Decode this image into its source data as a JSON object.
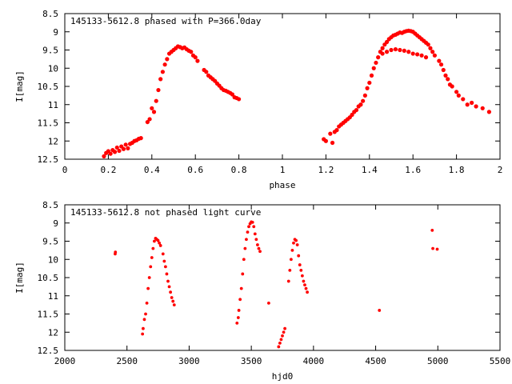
{
  "chart_data": [
    {
      "type": "scatter",
      "title": "145133-5612.8 phased with P=366.0day",
      "xlabel": "phase",
      "ylabel": "I[mag]",
      "xlim": [
        0,
        2
      ],
      "ylim": [
        12.5,
        8.5
      ],
      "y_inverted": true,
      "xticks": [
        "0",
        "0.2",
        "0.4",
        "0.6",
        "0.8",
        "1",
        "1.2",
        "1.4",
        "1.6",
        "1.8",
        "2"
      ],
      "yticks": [
        "8.5",
        "9",
        "9.5",
        "10",
        "10.5",
        "11",
        "11.5",
        "12",
        "12.5"
      ],
      "grid": false,
      "marker_color": "#ff0000",
      "series": [
        {
          "points": [
            [
              0.18,
              12.42
            ],
            [
              0.19,
              12.33
            ],
            [
              0.2,
              12.28
            ],
            [
              0.21,
              12.35
            ],
            [
              0.22,
              12.25
            ],
            [
              0.23,
              12.3
            ],
            [
              0.24,
              12.18
            ],
            [
              0.25,
              12.27
            ],
            [
              0.26,
              12.15
            ],
            [
              0.27,
              12.22
            ],
            [
              0.28,
              12.1
            ],
            [
              0.29,
              12.2
            ],
            [
              0.3,
              12.08
            ],
            [
              0.31,
              12.05
            ],
            [
              0.32,
              12.0
            ],
            [
              0.33,
              11.98
            ],
            [
              0.34,
              11.94
            ],
            [
              0.35,
              11.92
            ],
            [
              0.38,
              11.48
            ],
            [
              0.39,
              11.4
            ],
            [
              0.4,
              11.1
            ],
            [
              0.41,
              11.2
            ],
            [
              0.42,
              10.9
            ],
            [
              0.43,
              10.6
            ],
            [
              0.44,
              10.3
            ],
            [
              0.45,
              10.1
            ],
            [
              0.46,
              9.9
            ],
            [
              0.47,
              9.75
            ],
            [
              0.48,
              9.6
            ],
            [
              0.49,
              9.55
            ],
            [
              0.5,
              9.5
            ],
            [
              0.51,
              9.45
            ],
            [
              0.52,
              9.4
            ],
            [
              0.53,
              9.42
            ],
            [
              0.54,
              9.45
            ],
            [
              0.55,
              9.43
            ],
            [
              0.56,
              9.48
            ],
            [
              0.57,
              9.52
            ],
            [
              0.58,
              9.55
            ],
            [
              0.59,
              9.65
            ],
            [
              0.6,
              9.7
            ],
            [
              0.61,
              9.8
            ],
            [
              0.64,
              10.05
            ],
            [
              0.65,
              10.1
            ],
            [
              0.66,
              10.2
            ],
            [
              0.67,
              10.25
            ],
            [
              0.68,
              10.3
            ],
            [
              0.69,
              10.35
            ],
            [
              0.7,
              10.42
            ],
            [
              0.71,
              10.48
            ],
            [
              0.72,
              10.55
            ],
            [
              0.73,
              10.6
            ],
            [
              0.74,
              10.62
            ],
            [
              0.75,
              10.65
            ],
            [
              0.76,
              10.68
            ],
            [
              0.77,
              10.72
            ],
            [
              0.78,
              10.8
            ],
            [
              0.79,
              10.82
            ],
            [
              0.8,
              10.85
            ],
            [
              1.19,
              11.95
            ],
            [
              1.2,
              12.0
            ],
            [
              1.22,
              11.8
            ],
            [
              1.23,
              12.05
            ],
            [
              1.24,
              11.75
            ],
            [
              1.25,
              11.7
            ],
            [
              1.26,
              11.6
            ],
            [
              1.27,
              11.55
            ],
            [
              1.28,
              11.5
            ],
            [
              1.29,
              11.45
            ],
            [
              1.3,
              11.4
            ],
            [
              1.31,
              11.35
            ],
            [
              1.32,
              11.28
            ],
            [
              1.33,
              11.2
            ],
            [
              1.34,
              11.15
            ],
            [
              1.35,
              11.05
            ],
            [
              1.36,
              11.0
            ],
            [
              1.37,
              10.9
            ],
            [
              1.38,
              10.75
            ],
            [
              1.39,
              10.55
            ],
            [
              1.4,
              10.4
            ],
            [
              1.41,
              10.2
            ],
            [
              1.42,
              10.0
            ],
            [
              1.43,
              9.85
            ],
            [
              1.44,
              9.7
            ],
            [
              1.45,
              9.55
            ],
            [
              1.46,
              9.45
            ],
            [
              1.47,
              9.35
            ],
            [
              1.48,
              9.28
            ],
            [
              1.49,
              9.2
            ],
            [
              1.5,
              9.15
            ],
            [
              1.51,
              9.1
            ],
            [
              1.52,
              9.08
            ],
            [
              1.53,
              9.05
            ],
            [
              1.54,
              9.02
            ],
            [
              1.55,
              9.03
            ],
            [
              1.56,
              9.0
            ],
            [
              1.57,
              8.98
            ],
            [
              1.58,
              8.97
            ],
            [
              1.59,
              8.98
            ],
            [
              1.6,
              9.0
            ],
            [
              1.61,
              9.05
            ],
            [
              1.62,
              9.1
            ],
            [
              1.63,
              9.15
            ],
            [
              1.64,
              9.2
            ],
            [
              1.65,
              9.25
            ],
            [
              1.66,
              9.3
            ],
            [
              1.67,
              9.35
            ],
            [
              1.68,
              9.45
            ],
            [
              1.69,
              9.55
            ],
            [
              1.7,
              9.65
            ],
            [
              1.72,
              9.8
            ],
            [
              1.73,
              9.9
            ],
            [
              1.74,
              10.05
            ],
            [
              1.75,
              10.2
            ],
            [
              1.76,
              10.3
            ],
            [
              1.77,
              10.45
            ],
            [
              1.78,
              10.5
            ],
            [
              1.8,
              10.65
            ],
            [
              1.81,
              10.75
            ],
            [
              1.83,
              10.85
            ],
            [
              1.85,
              11.0
            ],
            [
              1.87,
              10.95
            ],
            [
              1.89,
              11.05
            ],
            [
              1.92,
              11.1
            ],
            [
              1.95,
              11.2
            ],
            [
              1.46,
              9.6
            ],
            [
              1.48,
              9.55
            ],
            [
              1.5,
              9.5
            ],
            [
              1.52,
              9.48
            ],
            [
              1.54,
              9.5
            ],
            [
              1.56,
              9.52
            ],
            [
              1.58,
              9.55
            ],
            [
              1.6,
              9.6
            ],
            [
              1.62,
              9.62
            ],
            [
              1.64,
              9.65
            ],
            [
              1.66,
              9.7
            ]
          ]
        }
      ]
    },
    {
      "type": "scatter",
      "title": "145133-5612.8 not phased light curve",
      "xlabel": "hjd0",
      "ylabel": "I[mag]",
      "xlim": [
        2000,
        5500
      ],
      "ylim": [
        12.5,
        8.5
      ],
      "y_inverted": true,
      "xticks": [
        "2000",
        "2500",
        "3000",
        "3500",
        "4000",
        "4500",
        "5000",
        "5500"
      ],
      "yticks": [
        "8.5",
        "9",
        "9.5",
        "10",
        "10.5",
        "11",
        "11.5",
        "12",
        "12.5"
      ],
      "grid": false,
      "marker_color": "#ff0000",
      "series": [
        {
          "points": [
            [
              2405,
              9.85
            ],
            [
              2407,
              9.8
            ],
            [
              2625,
              12.05
            ],
            [
              2630,
              11.9
            ],
            [
              2640,
              11.65
            ],
            [
              2650,
              11.5
            ],
            [
              2660,
              11.2
            ],
            [
              2670,
              10.8
            ],
            [
              2680,
              10.5
            ],
            [
              2690,
              10.2
            ],
            [
              2700,
              9.95
            ],
            [
              2710,
              9.7
            ],
            [
              2720,
              9.5
            ],
            [
              2730,
              9.42
            ],
            [
              2740,
              9.45
            ],
            [
              2750,
              9.48
            ],
            [
              2760,
              9.55
            ],
            [
              2770,
              9.62
            ],
            [
              2790,
              9.85
            ],
            [
              2800,
              10.05
            ],
            [
              2810,
              10.2
            ],
            [
              2820,
              10.4
            ],
            [
              2830,
              10.6
            ],
            [
              2840,
              10.75
            ],
            [
              2850,
              10.9
            ],
            [
              2860,
              11.05
            ],
            [
              2870,
              11.15
            ],
            [
              2880,
              11.25
            ],
            [
              3385,
              11.75
            ],
            [
              3395,
              11.6
            ],
            [
              3400,
              11.4
            ],
            [
              3410,
              11.1
            ],
            [
              3420,
              10.8
            ],
            [
              3430,
              10.4
            ],
            [
              3440,
              10.0
            ],
            [
              3450,
              9.7
            ],
            [
              3460,
              9.45
            ],
            [
              3470,
              9.25
            ],
            [
              3480,
              9.1
            ],
            [
              3490,
              9.02
            ],
            [
              3500,
              8.97
            ],
            [
              3510,
              8.98
            ],
            [
              3520,
              9.1
            ],
            [
              3530,
              9.3
            ],
            [
              3540,
              9.45
            ],
            [
              3550,
              9.6
            ],
            [
              3560,
              9.7
            ],
            [
              3570,
              9.78
            ],
            [
              3640,
              11.2
            ],
            [
              3720,
              12.4
            ],
            [
              3730,
              12.3
            ],
            [
              3740,
              12.2
            ],
            [
              3750,
              12.1
            ],
            [
              3760,
              12.0
            ],
            [
              3770,
              11.9
            ],
            [
              3800,
              10.6
            ],
            [
              3810,
              10.3
            ],
            [
              3820,
              10.0
            ],
            [
              3830,
              9.75
            ],
            [
              3840,
              9.55
            ],
            [
              3850,
              9.45
            ],
            [
              3860,
              9.48
            ],
            [
              3870,
              9.6
            ],
            [
              3880,
              9.9
            ],
            [
              3890,
              10.15
            ],
            [
              3900,
              10.3
            ],
            [
              3910,
              10.45
            ],
            [
              3920,
              10.6
            ],
            [
              3930,
              10.7
            ],
            [
              3940,
              10.8
            ],
            [
              3950,
              10.9
            ],
            [
              4530,
              11.4
            ],
            [
              4955,
              9.2
            ],
            [
              4960,
              9.7
            ],
            [
              4995,
              9.72
            ]
          ]
        }
      ]
    }
  ]
}
